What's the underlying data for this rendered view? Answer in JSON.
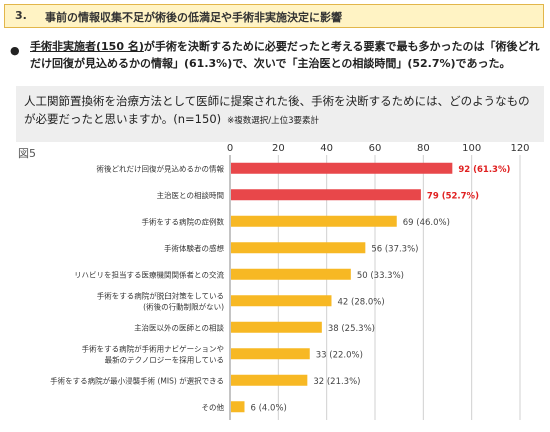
{
  "header": {
    "number": "3.",
    "title": "事前の情報収集不足が術後の低満足や手術非実施決定に影響"
  },
  "summary": {
    "bullet": "●",
    "part1": "手術非実施者(150 名)",
    "part2": "が手術を決断するために必要だったと考える要素で最も多かったのは「術後どれだけ回復が見込めるかの情報」(61.3%)で、次いで「主治医との相談時間」(52.7%)であった。"
  },
  "question": {
    "text": "人工関節置換術を治療方法として医師に提案された後、手術を決断するためには、どのようなものが必要だったと思いますか。(n=150)",
    "note": "※複数選択/上位3要素計"
  },
  "figure_label": "図5",
  "colors": {
    "highlight": "#e8474a",
    "normal": "#f7b824",
    "highlight_text": "#e02020"
  },
  "chart_data": {
    "type": "bar",
    "orientation": "horizontal",
    "xlim": [
      0,
      120
    ],
    "ticks": [
      0,
      20,
      40,
      60,
      80,
      100,
      120
    ],
    "grid": true,
    "categories": [
      [
        "術後どれだけ回復が見込めるかの情報"
      ],
      [
        "主治医との相談時間"
      ],
      [
        "手術をする病院の症例数"
      ],
      [
        "手術体験者の感想"
      ],
      [
        "リハビリを担当する医療機関関係者との交流"
      ],
      [
        "手術をする病院が脱臼対策をしている",
        "(術後の行動制限がない)"
      ],
      [
        "主治医以外の医師との相談"
      ],
      [
        "手術をする病院が手術用ナビゲーションや",
        "最新のテクノロジーを採用している"
      ],
      [
        "手術をする病院が最小浸襲手術 (MIS) が選択できる"
      ],
      [
        "その他"
      ]
    ],
    "values": [
      92,
      79,
      69,
      56,
      50,
      42,
      38,
      33,
      32,
      6
    ],
    "data_labels": [
      "92 (61.3%)",
      "79 (52.7%)",
      "69 (46.0%)",
      "56 (37.3%)",
      "50 (33.3%)",
      "42 (28.0%)",
      "38 (25.3%)",
      "33 (22.0%)",
      "32 (21.3%)",
      "6 (4.0%)"
    ],
    "highlighted": [
      true,
      true,
      false,
      false,
      false,
      false,
      false,
      false,
      false,
      false
    ]
  }
}
